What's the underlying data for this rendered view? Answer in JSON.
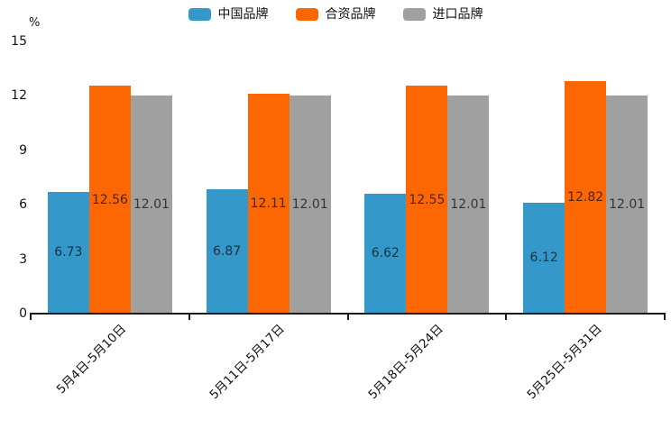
{
  "chart_data": {
    "type": "bar",
    "title": "",
    "unit_label": "%",
    "categories": [
      "5月4日-5月10日",
      "5月11日-5月17日",
      "5月18日-5月24日",
      "5月25日-5月31日"
    ],
    "series": [
      {
        "name": "中国品牌",
        "color": "#3498cb",
        "values": [
          6.73,
          6.87,
          6.62,
          6.12
        ]
      },
      {
        "name": "合资品牌",
        "color": "#fd6703",
        "values": [
          12.56,
          12.11,
          12.55,
          12.82
        ]
      },
      {
        "name": "进口品牌",
        "color": "#a0a0a0",
        "values": [
          12.01,
          12.01,
          12.01,
          12.01
        ]
      }
    ],
    "ylim": [
      0,
      15
    ],
    "yticks": [
      0,
      3,
      6,
      9,
      12,
      15
    ],
    "legend_position": "top",
    "grid": false,
    "value_labels": "centered-inside-bars",
    "x_label_rotation_deg": 45,
    "axis_color": "#1a1a1a"
  }
}
